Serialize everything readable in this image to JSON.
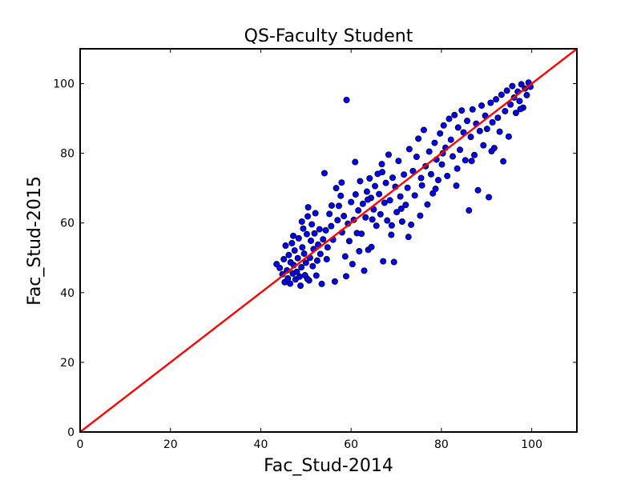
{
  "chart_data": {
    "type": "scatter",
    "title": "QS-Faculty Student",
    "xlabel": "Fac_Stud-2014",
    "ylabel": "Fac_Stud-2015",
    "xlim": [
      0,
      110
    ],
    "ylim": [
      0,
      110
    ],
    "xticks": [
      0,
      20,
      40,
      60,
      80,
      100
    ],
    "yticks": [
      0,
      20,
      40,
      60,
      80,
      100
    ],
    "grid": false,
    "legend": "none",
    "series": [
      {
        "marker_color": "#0000ff",
        "points": [
          [
            43.5,
            48.2
          ],
          [
            44.2,
            47.1
          ],
          [
            44.8,
            45.3
          ],
          [
            45.1,
            49.6
          ],
          [
            45.3,
            43.0
          ],
          [
            45.5,
            53.5
          ],
          [
            45.8,
            46.4
          ],
          [
            46.0,
            44.1
          ],
          [
            46.2,
            50.8
          ],
          [
            46.5,
            42.6
          ],
          [
            46.6,
            48.7
          ],
          [
            46.9,
            54.2
          ],
          [
            47.1,
            45.5
          ],
          [
            47.3,
            47.9
          ],
          [
            47.5,
            52.1
          ],
          [
            47.7,
            43.8
          ],
          [
            48.0,
            46.0
          ],
          [
            48.2,
            49.9
          ],
          [
            48.4,
            55.6
          ],
          [
            48.6,
            44.6
          ],
          [
            48.8,
            42.0
          ],
          [
            49.0,
            47.3
          ],
          [
            49.2,
            53.0
          ],
          [
            49.4,
            58.4
          ],
          [
            49.6,
            51.2
          ],
          [
            49.8,
            45.0
          ],
          [
            50.0,
            48.6
          ],
          [
            50.2,
            56.8
          ],
          [
            50.4,
            61.9
          ],
          [
            50.5,
            64.5
          ],
          [
            50.7,
            43.5
          ],
          [
            50.9,
            50.0
          ],
          [
            51.1,
            54.9
          ],
          [
            51.3,
            59.6
          ],
          [
            51.5,
            47.6
          ],
          [
            51.7,
            52.5
          ],
          [
            51.9,
            57.0
          ],
          [
            52.1,
            62.8
          ],
          [
            52.3,
            44.9
          ],
          [
            52.5,
            49.2
          ],
          [
            52.7,
            53.8
          ],
          [
            53.0,
            58.2
          ],
          [
            53.2,
            51.1
          ],
          [
            53.5,
            42.5
          ],
          [
            53.8,
            55.3
          ],
          [
            54.1,
            74.3
          ],
          [
            54.4,
            57.9
          ],
          [
            54.8,
            53.0
          ],
          [
            55.2,
            62.6
          ],
          [
            55.6,
            59.1
          ],
          [
            56.0,
            55.2
          ],
          [
            56.4,
            43.2
          ],
          [
            56.7,
            70.0
          ],
          [
            57.0,
            60.8
          ],
          [
            57.3,
            64.9
          ],
          [
            57.7,
            67.8
          ],
          [
            58.0,
            57.3
          ],
          [
            58.4,
            62.0
          ],
          [
            58.7,
            50.4
          ],
          [
            59.0,
            95.3
          ],
          [
            59.3,
            59.8
          ],
          [
            59.6,
            54.8
          ],
          [
            60.0,
            66.0
          ],
          [
            60.3,
            48.2
          ],
          [
            60.6,
            60.9
          ],
          [
            61.0,
            68.2
          ],
          [
            61.3,
            57.1
          ],
          [
            61.6,
            63.6
          ],
          [
            62.0,
            72.0
          ],
          [
            62.3,
            56.9
          ],
          [
            62.6,
            65.5
          ],
          [
            62.9,
            46.3
          ],
          [
            63.2,
            61.6
          ],
          [
            63.5,
            69.0
          ],
          [
            63.8,
            52.3
          ],
          [
            64.1,
            72.8
          ],
          [
            64.4,
            67.2
          ],
          [
            64.7,
            61.0
          ],
          [
            65.0,
            63.9
          ],
          [
            65.3,
            70.6
          ],
          [
            65.6,
            59.2
          ],
          [
            65.9,
            74.1
          ],
          [
            66.2,
            68.3
          ],
          [
            66.5,
            62.5
          ],
          [
            66.8,
            76.9
          ],
          [
            67.1,
            49.0
          ],
          [
            67.4,
            65.8
          ],
          [
            67.7,
            71.5
          ],
          [
            68.0,
            60.7
          ],
          [
            68.3,
            79.6
          ],
          [
            68.6,
            66.5
          ],
          [
            68.9,
            56.6
          ],
          [
            69.2,
            73.0
          ],
          [
            69.5,
            48.8
          ],
          [
            69.8,
            70.4
          ],
          [
            70.1,
            63.1
          ],
          [
            70.5,
            77.8
          ],
          [
            70.9,
            67.6
          ],
          [
            71.3,
            60.4
          ],
          [
            71.7,
            73.9
          ],
          [
            72.1,
            65.2
          ],
          [
            72.5,
            70.1
          ],
          [
            72.9,
            81.2
          ],
          [
            73.3,
            59.5
          ],
          [
            73.7,
            74.9
          ],
          [
            74.1,
            67.9
          ],
          [
            74.5,
            79.0
          ],
          [
            74.9,
            84.2
          ],
          [
            75.3,
            62.1
          ],
          [
            75.7,
            70.8
          ],
          [
            76.1,
            86.7
          ],
          [
            76.5,
            76.3
          ],
          [
            76.9,
            65.3
          ],
          [
            77.3,
            80.5
          ],
          [
            77.7,
            74.0
          ],
          [
            78.1,
            68.5
          ],
          [
            78.5,
            83.0
          ],
          [
            78.9,
            78.2
          ],
          [
            79.3,
            72.3
          ],
          [
            79.7,
            85.7
          ],
          [
            80.1,
            76.8
          ],
          [
            80.5,
            88.0
          ],
          [
            80.9,
            81.6
          ],
          [
            81.3,
            73.5
          ],
          [
            81.7,
            89.9
          ],
          [
            82.1,
            83.9
          ],
          [
            82.5,
            79.1
          ],
          [
            82.9,
            91.0
          ],
          [
            83.3,
            70.7
          ],
          [
            83.7,
            87.4
          ],
          [
            84.1,
            81.0
          ],
          [
            84.5,
            92.3
          ],
          [
            84.9,
            86.0
          ],
          [
            85.3,
            78.0
          ],
          [
            85.7,
            89.3
          ],
          [
            86.1,
            63.6
          ],
          [
            86.5,
            84.7
          ],
          [
            86.9,
            92.6
          ],
          [
            87.3,
            79.5
          ],
          [
            87.7,
            88.5
          ],
          [
            88.1,
            69.4
          ],
          [
            88.5,
            86.4
          ],
          [
            88.9,
            93.7
          ],
          [
            89.3,
            82.3
          ],
          [
            89.7,
            90.8
          ],
          [
            90.1,
            87.0
          ],
          [
            90.5,
            67.4
          ],
          [
            90.9,
            94.5
          ],
          [
            91.3,
            88.9
          ],
          [
            91.7,
            81.5
          ],
          [
            92.1,
            95.5
          ],
          [
            92.5,
            90.2
          ],
          [
            92.9,
            86.2
          ],
          [
            93.3,
            96.8
          ],
          [
            93.7,
            77.7
          ],
          [
            94.1,
            92.1
          ],
          [
            94.5,
            98.0
          ],
          [
            94.9,
            84.8
          ],
          [
            95.3,
            94.0
          ],
          [
            95.7,
            99.3
          ],
          [
            96.1,
            96.0
          ],
          [
            96.5,
            91.6
          ],
          [
            96.9,
            97.7
          ],
          [
            97.3,
            95.0
          ],
          [
            97.7,
            99.8
          ],
          [
            98.1,
            93.1
          ],
          [
            98.5,
            98.6
          ],
          [
            98.9,
            96.7
          ],
          [
            99.3,
            100.3
          ],
          [
            99.7,
            99.1
          ],
          [
            50.3,
            44.0
          ],
          [
            54.6,
            49.6
          ],
          [
            58.9,
            44.7
          ],
          [
            61.8,
            51.9
          ],
          [
            64.5,
            53.1
          ],
          [
            69.0,
            59.3
          ],
          [
            72.7,
            56.0
          ],
          [
            47.2,
            56.3
          ],
          [
            49.1,
            60.4
          ],
          [
            55.7,
            65.0
          ],
          [
            57.9,
            71.6
          ],
          [
            60.9,
            77.5
          ],
          [
            63.7,
            66.7
          ],
          [
            66.9,
            74.6
          ],
          [
            71.1,
            64.1
          ],
          [
            75.5,
            72.9
          ],
          [
            78.7,
            69.8
          ],
          [
            80.3,
            80.0
          ],
          [
            83.5,
            75.6
          ],
          [
            86.7,
            77.8
          ],
          [
            91.1,
            80.6
          ],
          [
            97.5,
            92.7
          ]
        ]
      },
      {
        "line_color": "#ff0000",
        "line_points": [
          [
            0,
            0
          ],
          [
            110,
            110
          ]
        ]
      }
    ]
  }
}
